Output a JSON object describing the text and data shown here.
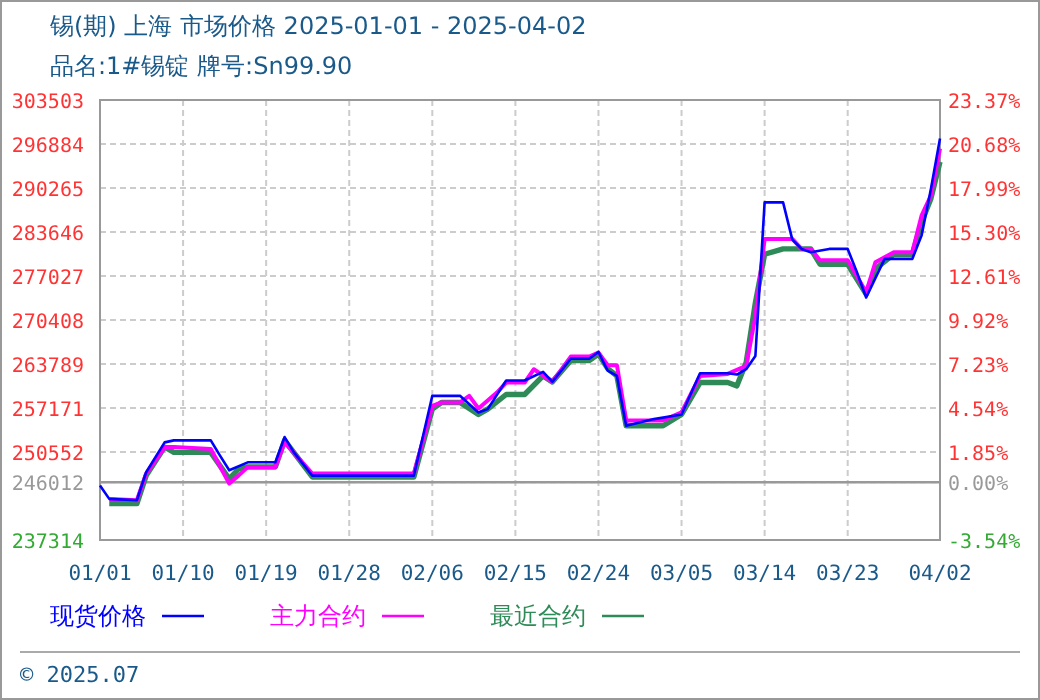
{
  "chart_data": {
    "type": "line",
    "title": "锡(期) 上海 市场价格 2025-01-01 - 2025-04-02",
    "subtitle": "品名:1#锡锭 牌号:Sn99.90",
    "annotations": [
      "© 2025.07"
    ],
    "xlim": [
      "2025-01-01",
      "2025-04-02"
    ],
    "xticks": [
      {
        "value": "2025-01-01",
        "label": "01/01"
      },
      {
        "value": "2025-01-10",
        "label": "01/10"
      },
      {
        "value": "2025-01-19",
        "label": "01/19"
      },
      {
        "value": "2025-01-28",
        "label": "01/28"
      },
      {
        "value": "2025-02-06",
        "label": "02/06"
      },
      {
        "value": "2025-02-15",
        "label": "02/15"
      },
      {
        "value": "2025-02-24",
        "label": "02/24"
      },
      {
        "value": "2025-03-05",
        "label": "03/05"
      },
      {
        "value": "2025-03-14",
        "label": "03/14"
      },
      {
        "value": "2025-03-23",
        "label": "03/23"
      },
      {
        "value": "2025-04-02",
        "label": "04/02"
      }
    ],
    "ylim": [
      237314,
      303503
    ],
    "yticks": [
      237314,
      246012,
      250552,
      257171,
      263789,
      270408,
      277027,
      283646,
      290265,
      296884,
      303503
    ],
    "y2lim": [
      -3.54,
      23.37
    ],
    "y2ticks": [
      {
        "value": -3.54,
        "label": "-3.54%"
      },
      {
        "value": 0,
        "label": "0.00%"
      },
      {
        "value": 1.85,
        "label": "1.85%"
      },
      {
        "value": 4.54,
        "label": "4.54%"
      },
      {
        "value": 7.23,
        "label": "7.23%"
      },
      {
        "value": 9.92,
        "label": "9.92%"
      },
      {
        "value": 12.61,
        "label": "12.61%"
      },
      {
        "value": 15.3,
        "label": "15.30%"
      },
      {
        "value": 17.99,
        "label": "17.99%"
      },
      {
        "value": 20.68,
        "label": "20.68%"
      },
      {
        "value": 23.37,
        "label": "23.37%"
      }
    ],
    "grid": true,
    "legend": "bottom",
    "ref_lines": [
      {
        "axis": "y",
        "value": 246012,
        "color": "#999999"
      }
    ],
    "series": [
      {
        "name": "现货价格",
        "color": "#0000ff",
        "x": [
          "2025-01-01",
          "2025-01-02",
          "2025-01-05",
          "2025-01-06",
          "2025-01-08",
          "2025-01-09",
          "2025-01-13",
          "2025-01-14",
          "2025-01-15",
          "2025-01-17",
          "2025-01-20",
          "2025-01-21",
          "2025-01-22",
          "2025-01-24",
          "2025-02-04",
          "2025-02-05",
          "2025-02-06",
          "2025-02-09",
          "2025-02-11",
          "2025-02-12",
          "2025-02-14",
          "2025-02-16",
          "2025-02-18",
          "2025-02-19",
          "2025-02-21",
          "2025-02-23",
          "2025-02-24",
          "2025-02-25",
          "2025-02-26",
          "2025-02-27",
          "2025-03-02",
          "2025-03-05",
          "2025-03-07",
          "2025-03-10",
          "2025-03-11",
          "2025-03-12",
          "2025-03-13",
          "2025-03-14",
          "2025-03-16",
          "2025-03-17",
          "2025-03-18",
          "2025-03-19",
          "2025-03-21",
          "2025-03-23",
          "2025-03-24",
          "2025-03-25",
          "2025-03-27",
          "2025-03-30",
          "2025-03-31",
          "2025-04-01",
          "2025-04-02"
        ],
        "values": [
          245500,
          243500,
          243300,
          247500,
          252000,
          252300,
          252300,
          250000,
          247800,
          249000,
          249000,
          252800,
          250500,
          247000,
          247000,
          253000,
          259000,
          259000,
          256500,
          257000,
          261300,
          261300,
          262600,
          261100,
          264600,
          264600,
          265600,
          262800,
          262000,
          254500,
          255500,
          256200,
          262400,
          262400,
          262200,
          263000,
          265000,
          288100,
          288100,
          282500,
          281100,
          280600,
          281100,
          281100,
          277600,
          273800,
          279600,
          279600,
          283100,
          290000,
          297700
        ]
      },
      {
        "name": "主力合约",
        "color": "#ff00ff",
        "x": [
          "2025-01-02",
          "2025-01-05",
          "2025-01-06",
          "2025-01-08",
          "2025-01-09",
          "2025-01-13",
          "2025-01-15",
          "2025-01-16",
          "2025-01-17",
          "2025-01-20",
          "2025-01-21",
          "2025-01-24",
          "2025-02-04",
          "2025-02-06",
          "2025-02-07",
          "2025-02-09",
          "2025-02-10",
          "2025-02-11",
          "2025-02-13",
          "2025-02-14",
          "2025-02-16",
          "2025-02-17",
          "2025-02-19",
          "2025-02-21",
          "2025-02-23",
          "2025-02-24",
          "2025-02-25",
          "2025-02-26",
          "2025-02-27",
          "2025-03-03",
          "2025-03-05",
          "2025-03-07",
          "2025-03-10",
          "2025-03-12",
          "2025-03-13",
          "2025-03-14",
          "2025-03-17",
          "2025-03-18",
          "2025-03-19",
          "2025-03-20",
          "2025-03-23",
          "2025-03-25",
          "2025-03-26",
          "2025-03-28",
          "2025-03-30",
          "2025-03-31",
          "2025-04-01",
          "2025-04-02"
        ],
        "values": [
          243500,
          243300,
          247300,
          251300,
          251300,
          251000,
          245800,
          247000,
          248300,
          248300,
          252000,
          247300,
          247300,
          257500,
          258000,
          258000,
          259000,
          257100,
          259500,
          261000,
          261000,
          263000,
          261100,
          264900,
          264900,
          265500,
          263600,
          263600,
          255300,
          255300,
          256500,
          262000,
          262300,
          263500,
          271000,
          282600,
          282600,
          281100,
          281100,
          279400,
          279400,
          274600,
          279100,
          280600,
          280600,
          286100,
          289100,
          296200
        ]
      },
      {
        "name": "最近合约",
        "color": "#2e8b57",
        "x": [
          "2025-01-02",
          "2025-01-05",
          "2025-01-06",
          "2025-01-08",
          "2025-01-09",
          "2025-01-13",
          "2025-01-15",
          "2025-01-16",
          "2025-01-17",
          "2025-01-20",
          "2025-01-21",
          "2025-01-24",
          "2025-02-04",
          "2025-02-06",
          "2025-02-07",
          "2025-02-09",
          "2025-02-11",
          "2025-02-12",
          "2025-02-14",
          "2025-02-16",
          "2025-02-18",
          "2025-02-19",
          "2025-02-21",
          "2025-02-23",
          "2025-02-24",
          "2025-02-25",
          "2025-02-26",
          "2025-02-27",
          "2025-03-03",
          "2025-03-05",
          "2025-03-07",
          "2025-03-10",
          "2025-03-11",
          "2025-03-12",
          "2025-03-13",
          "2025-03-14",
          "2025-03-16",
          "2025-03-19",
          "2025-03-20",
          "2025-03-23",
          "2025-03-25",
          "2025-03-26",
          "2025-03-28",
          "2025-03-30",
          "2025-03-31",
          "2025-04-01",
          "2025-04-02"
        ],
        "values": [
          242800,
          242800,
          247000,
          251300,
          250500,
          250500,
          246500,
          248000,
          248300,
          248300,
          252300,
          246800,
          246800,
          257000,
          258000,
          258000,
          256200,
          257000,
          259200,
          259200,
          262000,
          261100,
          264300,
          264300,
          265300,
          263100,
          262000,
          254500,
          254500,
          256200,
          261000,
          261000,
          260500,
          264000,
          273000,
          280300,
          281100,
          281100,
          278800,
          278800,
          274300,
          278100,
          280300,
          280300,
          285100,
          288600,
          294200
        ]
      }
    ]
  }
}
